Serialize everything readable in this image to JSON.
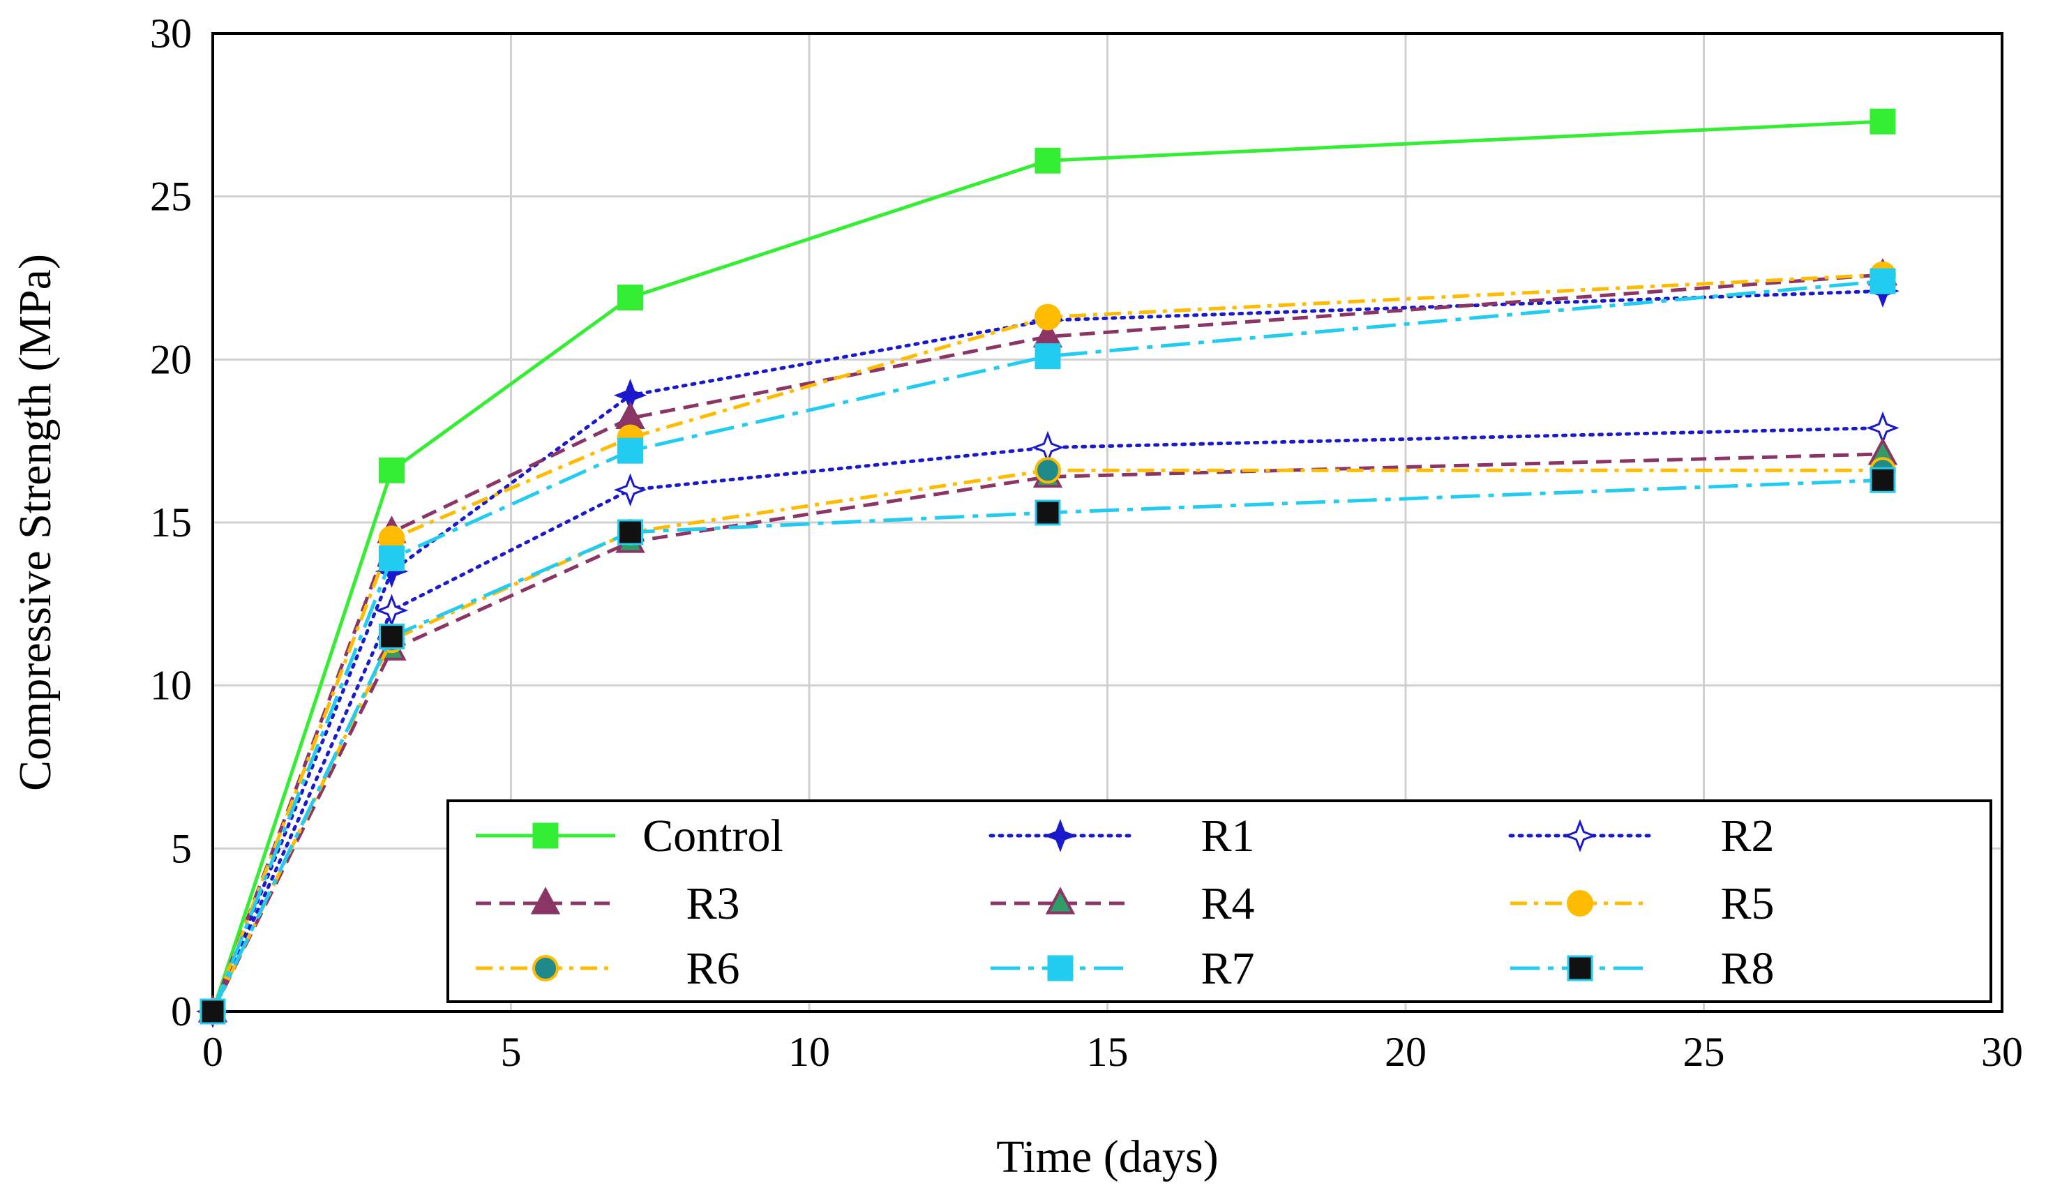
{
  "chart_data": {
    "type": "line",
    "title": "",
    "xlabel": "Time (days)",
    "ylabel": "Compressive Strength (MPa)",
    "xlim": [
      0,
      30
    ],
    "ylim": [
      0,
      30
    ],
    "xticks": [
      0,
      5,
      10,
      15,
      20,
      25,
      30
    ],
    "yticks": [
      0,
      5,
      10,
      15,
      20,
      25,
      30
    ],
    "grid": true,
    "legend_position": "bottom-right inside plot",
    "x": [
      0,
      3,
      7,
      14,
      28
    ],
    "series": [
      {
        "name": "Control",
        "values": [
          0,
          16.6,
          21.9,
          26.1,
          27.3
        ],
        "color": "#33ee33",
        "dash": "solid",
        "marker": "square",
        "marker_fill": "#33ee33",
        "marker_stroke": "#33ee33"
      },
      {
        "name": "R1",
        "values": [
          0,
          13.5,
          18.9,
          21.2,
          22.1
        ],
        "color": "#1a1acc",
        "dash": "dotted",
        "marker": "star",
        "marker_fill": "#1a1acc",
        "marker_stroke": "#1a1acc"
      },
      {
        "name": "R2",
        "values": [
          0,
          12.3,
          16.0,
          17.3,
          17.9
        ],
        "color": "#1a1acc",
        "dash": "dotted",
        "marker": "star",
        "marker_fill": "#ffffff",
        "marker_stroke": "#1a1acc"
      },
      {
        "name": "R3",
        "values": [
          0,
          14.7,
          18.2,
          20.7,
          22.6
        ],
        "color": "#8b3566",
        "dash": "dashed",
        "marker": "triangle",
        "marker_fill": "#8b3566",
        "marker_stroke": "#8b3566"
      },
      {
        "name": "R4",
        "values": [
          0,
          11.1,
          14.4,
          16.4,
          17.1
        ],
        "color": "#8b3566",
        "dash": "dashed",
        "marker": "triangle",
        "marker_fill": "#2e9e66",
        "marker_stroke": "#8b3566"
      },
      {
        "name": "R5",
        "values": [
          0,
          14.5,
          17.6,
          21.3,
          22.6
        ],
        "color": "#ffbb00",
        "dash": "dashdot",
        "marker": "circle",
        "marker_fill": "#ffbb00",
        "marker_stroke": "#ffbb00"
      },
      {
        "name": "R6",
        "values": [
          0,
          11.4,
          14.7,
          16.6,
          16.6
        ],
        "color": "#ffbb00",
        "dash": "dashdot",
        "marker": "circle",
        "marker_fill": "#1e8a8a",
        "marker_stroke": "#ffbb00"
      },
      {
        "name": "R7",
        "values": [
          0,
          13.9,
          17.2,
          20.1,
          22.4
        ],
        "color": "#22ccf0",
        "dash": "longdashdot",
        "marker": "square",
        "marker_fill": "#22ccf0",
        "marker_stroke": "#22ccf0"
      },
      {
        "name": "R8",
        "values": [
          0,
          11.5,
          14.7,
          15.3,
          16.3
        ],
        "color": "#22ccf0",
        "dash": "longdashdot",
        "marker": "square",
        "marker_fill": "#111111",
        "marker_stroke": "#22ccf0"
      }
    ]
  }
}
